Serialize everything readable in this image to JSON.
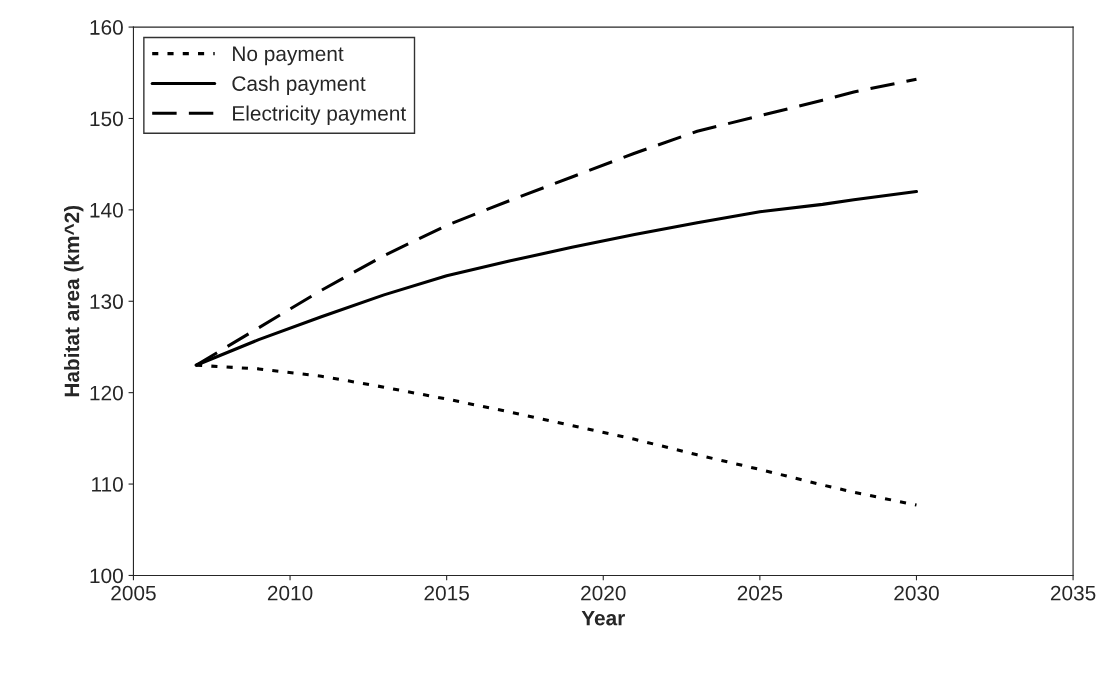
{
  "chart_data": {
    "type": "line",
    "xlabel": "Year",
    "ylabel": "Habitat area (km^2)",
    "x": [
      2007,
      2009,
      2011,
      2013,
      2015,
      2017,
      2019,
      2021,
      2023,
      2025,
      2027,
      2028,
      2030
    ],
    "series": [
      {
        "name": "No payment",
        "color": "#000000",
        "line_style": "dotted",
        "values": [
          123,
          122.6,
          121.8,
          120.6,
          119.3,
          117.9,
          116.4,
          114.9,
          113.2,
          111.6,
          109.9,
          109.1,
          107.7
        ]
      },
      {
        "name": "Cash payment",
        "color": "#000000",
        "line_style": "solid",
        "values": [
          123,
          125.8,
          128.3,
          130.7,
          132.8,
          134.4,
          135.9,
          137.3,
          138.6,
          139.8,
          140.6,
          141.1,
          142
        ]
      },
      {
        "name": "Electricity payment",
        "color": "#000000",
        "line_style": "dashed",
        "values": [
          123,
          127.1,
          131.2,
          135,
          138.3,
          141,
          143.6,
          146.2,
          148.6,
          150.3,
          152,
          152.9,
          154.3
        ]
      }
    ],
    "xlim": [
      2005,
      2035
    ],
    "xticks": [
      2005,
      2010,
      2015,
      2020,
      2025,
      2030,
      2035
    ],
    "ylim": [
      100,
      160
    ],
    "yticks": [
      100,
      110,
      120,
      130,
      140,
      150,
      160
    ],
    "grid": false,
    "legend": "top left",
    "marker": "none"
  }
}
